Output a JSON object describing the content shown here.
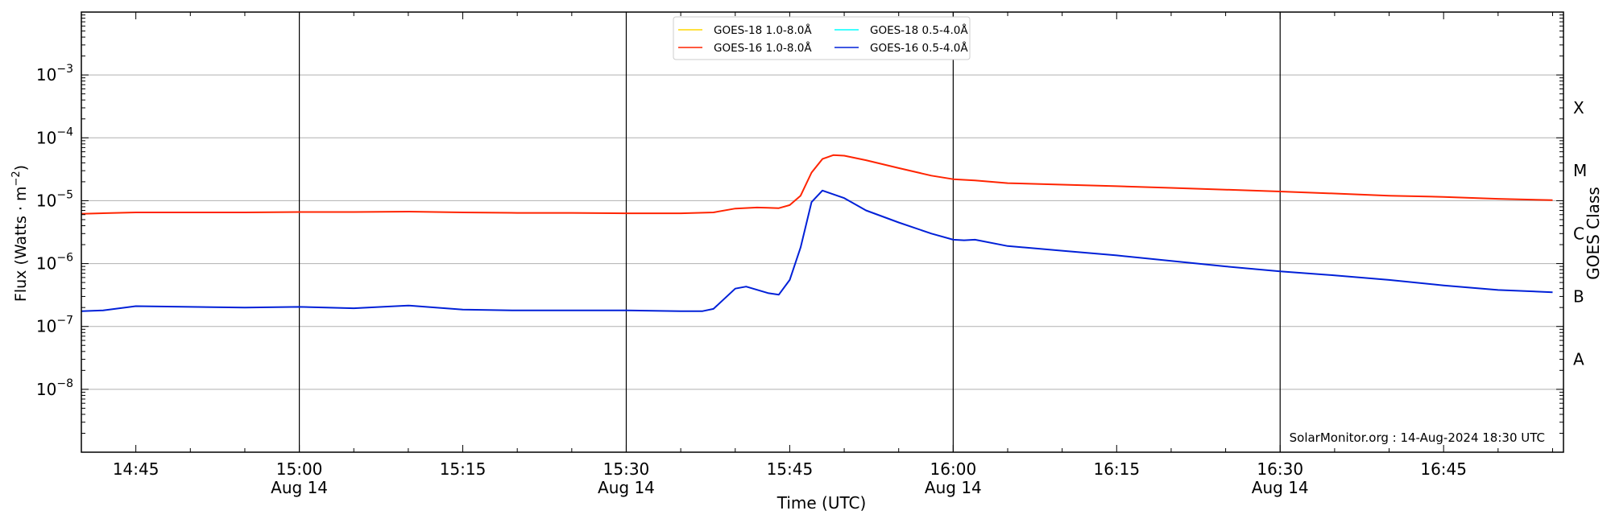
{
  "chart_data": {
    "type": "line",
    "title": "",
    "xlabel": "Time (UTC)",
    "ylabel": "Flux (Watts · m",
    "ylabel_sup": "−2",
    "ylabel_close": ")",
    "y2label": "GOES Class",
    "yscale": "log",
    "xlim": [
      "14:40",
      "16:56"
    ],
    "ylim": [
      1e-09,
      0.01
    ],
    "grid": "horizontal",
    "legend_position": "top-center",
    "x_ticks": [
      {
        "t": "14:45",
        "label": "14:45",
        "date": ""
      },
      {
        "t": "15:00",
        "label": "15:00",
        "date": "Aug 14"
      },
      {
        "t": "15:15",
        "label": "15:15",
        "date": ""
      },
      {
        "t": "15:30",
        "label": "15:30",
        "date": "Aug 14"
      },
      {
        "t": "15:45",
        "label": "15:45",
        "date": ""
      },
      {
        "t": "16:00",
        "label": "16:00",
        "date": "Aug 14"
      },
      {
        "t": "16:15",
        "label": "16:15",
        "date": ""
      },
      {
        "t": "16:30",
        "label": "16:30",
        "date": "Aug 14"
      },
      {
        "t": "16:45",
        "label": "16:45",
        "date": ""
      }
    ],
    "vertical_lines": [
      "15:00",
      "15:30",
      "16:00",
      "16:30"
    ],
    "y_ticks": [
      {
        "exp": -8,
        "label_base": "10",
        "label_exp": "−8"
      },
      {
        "exp": -7,
        "label_base": "10",
        "label_exp": "−7"
      },
      {
        "exp": -6,
        "label_base": "10",
        "label_exp": "−6"
      },
      {
        "exp": -5,
        "label_base": "10",
        "label_exp": "−5"
      },
      {
        "exp": -4,
        "label_base": "10",
        "label_exp": "−4"
      },
      {
        "exp": -3,
        "label_base": "10",
        "label_exp": "−3"
      }
    ],
    "goes_classes": [
      {
        "label": "A",
        "at": 3e-08
      },
      {
        "label": "B",
        "at": 3e-07
      },
      {
        "label": "C",
        "at": 3e-06
      },
      {
        "label": "M",
        "at": 3e-05
      },
      {
        "label": "X",
        "at": 0.0003
      }
    ],
    "annotation": "SolarMonitor.org : 14-Aug-2024 18:30 UTC",
    "legend_columns": 2,
    "series": [
      {
        "name": "GOES-18 1.0-8.0Å",
        "color": "#FFD700",
        "x": [],
        "y": []
      },
      {
        "name": "GOES-16 1.0-8.0Å",
        "color": "#FF2400",
        "x": [
          "14:40",
          "14:45",
          "14:50",
          "14:55",
          "15:00",
          "15:05",
          "15:10",
          "15:15",
          "15:20",
          "15:25",
          "15:30",
          "15:35",
          "15:38",
          "15:40",
          "15:42",
          "15:43",
          "15:44",
          "15:45",
          "15:46",
          "15:47",
          "15:48",
          "15:49",
          "15:50",
          "15:52",
          "15:55",
          "15:58",
          "16:00",
          "16:02",
          "16:05",
          "16:10",
          "16:15",
          "16:20",
          "16:25",
          "16:30",
          "16:35",
          "16:40",
          "16:45",
          "16:50",
          "16:55"
        ],
        "y": [
          6.2e-06,
          6.5e-06,
          6.5e-06,
          6.5e-06,
          6.6e-06,
          6.6e-06,
          6.7e-06,
          6.5e-06,
          6.4e-06,
          6.4e-06,
          6.3e-06,
          6.3e-06,
          6.5e-06,
          7.5e-06,
          7.8e-06,
          7.7e-06,
          7.6e-06,
          8.5e-06,
          1.2e-05,
          2.8e-05,
          4.6e-05,
          5.3e-05,
          5.2e-05,
          4.4e-05,
          3.3e-05,
          2.5e-05,
          2.2e-05,
          2.1e-05,
          1.9e-05,
          1.8e-05,
          1.7e-05,
          1.6e-05,
          1.5e-05,
          1.4e-05,
          1.3e-05,
          1.2e-05,
          1.15e-05,
          1.07e-05,
          1.02e-05
        ]
      },
      {
        "name": "GOES-18 0.5-4.0Å",
        "color": "#00FFFF",
        "x": [],
        "y": []
      },
      {
        "name": "GOES-16 0.5-4.0Å",
        "color": "#0020D8",
        "x": [
          "14:40",
          "14:42",
          "14:45",
          "14:50",
          "14:55",
          "15:00",
          "15:05",
          "15:10",
          "15:15",
          "15:20",
          "15:25",
          "15:30",
          "15:35",
          "15:37",
          "15:38",
          "15:40",
          "15:41",
          "15:43",
          "15:44",
          "15:45",
          "15:46",
          "15:47",
          "15:48",
          "15:50",
          "15:52",
          "15:55",
          "15:58",
          "16:00",
          "16:01",
          "16:02",
          "16:05",
          "16:10",
          "16:15",
          "16:20",
          "16:25",
          "16:30",
          "16:35",
          "16:40",
          "16:45",
          "16:50",
          "16:55"
        ],
        "y": [
          1.75e-07,
          1.8e-07,
          2.1e-07,
          2.05e-07,
          2e-07,
          2.05e-07,
          1.95e-07,
          2.15e-07,
          1.85e-07,
          1.8e-07,
          1.8e-07,
          1.8e-07,
          1.75e-07,
          1.75e-07,
          1.9e-07,
          4e-07,
          4.3e-07,
          3.4e-07,
          3.2e-07,
          5.5e-07,
          1.8e-06,
          9.5e-06,
          1.45e-05,
          1.1e-05,
          7e-06,
          4.5e-06,
          3e-06,
          2.4e-06,
          2.35e-06,
          2.4e-06,
          1.9e-06,
          1.6e-06,
          1.35e-06,
          1.1e-06,
          9e-07,
          7.5e-07,
          6.5e-07,
          5.5e-07,
          4.5e-07,
          3.8e-07,
          3.5e-07
        ]
      }
    ]
  }
}
